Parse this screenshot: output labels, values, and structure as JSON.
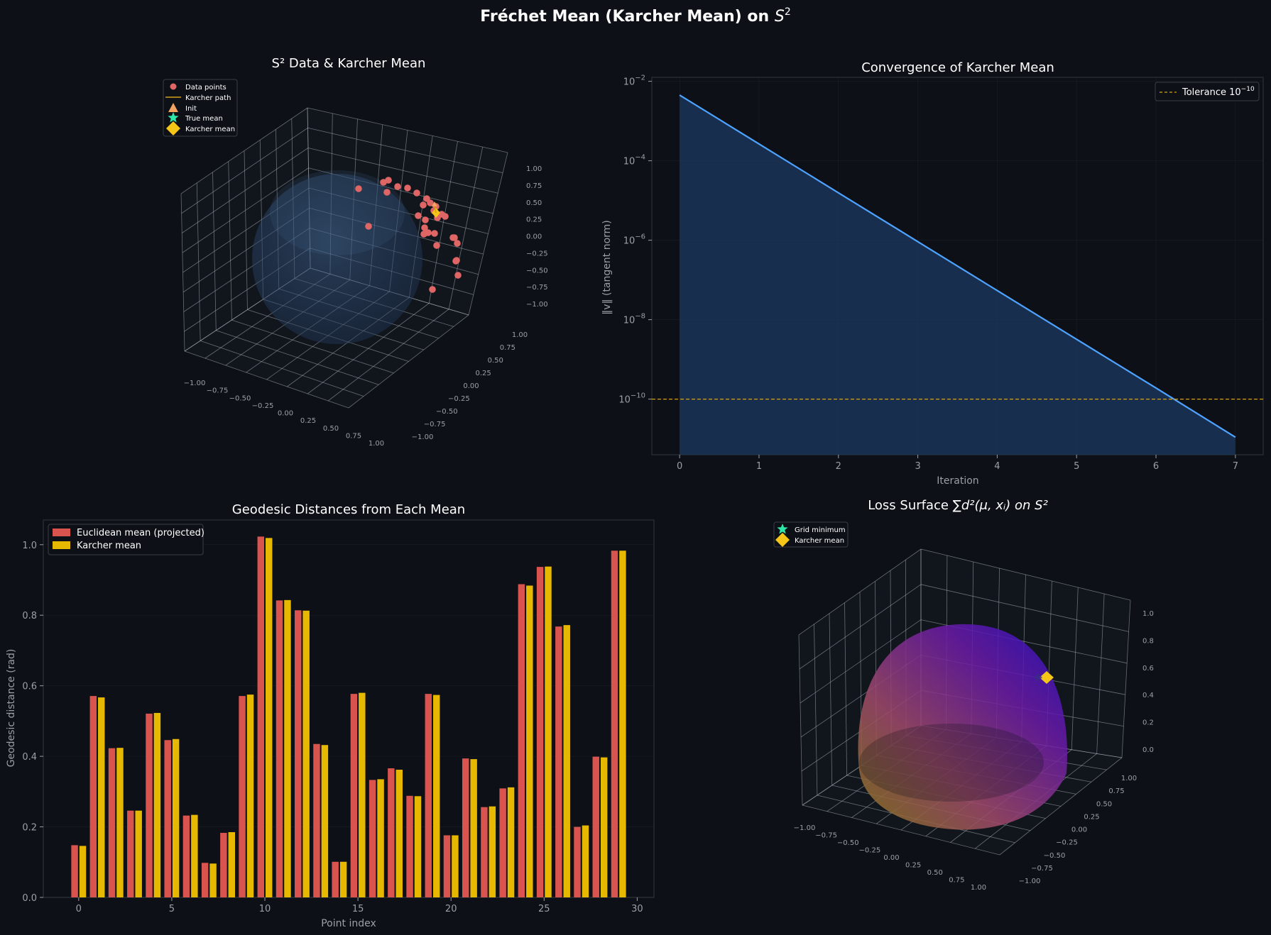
{
  "figure": {
    "suptitle": "Fréchet Mean (Karcher Mean) on",
    "suptitle_math": "S",
    "suptitle_sup": "2",
    "background": "#0d1117",
    "panel_background": "#0d1117"
  },
  "chart_data": [
    {
      "type": "scatter",
      "panel": "sphere-data",
      "title": "S² Data & Karcher Mean",
      "projection": "3d",
      "x_ticks": [
        "−1.00",
        "−0.75",
        "−0.50",
        "−0.25",
        "0.00",
        "0.25",
        "0.50",
        "0.75",
        "1.00"
      ],
      "y_ticks": [
        "−1.00",
        "−0.75",
        "−0.50",
        "−0.25",
        "0.00",
        "0.25",
        "0.50",
        "0.75",
        "1.00"
      ],
      "z_ticks": [
        "−1.00",
        "−0.75",
        "−0.50",
        "−0.25",
        "0.00",
        "0.25",
        "0.50",
        "0.75",
        "1.00"
      ],
      "legend": [
        {
          "label": "Data points",
          "marker": "circle",
          "color": "#e06666"
        },
        {
          "label": "Karcher path",
          "marker": "line",
          "color": "#d4a017"
        },
        {
          "label": "Init",
          "marker": "triangle",
          "color": "#f4a261"
        },
        {
          "label": "True mean",
          "marker": "star",
          "color": "#2ee6a8"
        },
        {
          "label": "Karcher mean",
          "marker": "diamond",
          "color": "#f5c518"
        }
      ],
      "sphere_color": "#3b5f8f",
      "data_points_projected": [
        [
          505,
          266
        ],
        [
          540,
          257
        ],
        [
          547,
          254
        ],
        [
          560,
          263
        ],
        [
          545,
          271
        ],
        [
          574,
          265
        ],
        [
          587,
          272
        ],
        [
          601,
          280
        ],
        [
          596,
          289
        ],
        [
          606,
          286
        ],
        [
          614,
          291
        ],
        [
          611,
          297
        ],
        [
          622,
          302
        ],
        [
          589,
          304
        ],
        [
          627,
          305
        ],
        [
          599,
          310
        ],
        [
          598,
          321
        ],
        [
          603,
          328
        ],
        [
          597,
          330
        ],
        [
          616,
          307
        ],
        [
          519,
          319
        ],
        [
          612,
          329
        ],
        [
          640,
          335
        ],
        [
          644,
          343
        ],
        [
          638,
          335
        ],
        [
          615,
          346
        ],
        [
          643,
          367
        ],
        [
          642,
          368
        ],
        [
          645,
          388
        ],
        [
          609,
          408
        ]
      ],
      "karcher_mean_projected": [
        614,
        300
      ]
    },
    {
      "type": "line",
      "panel": "convergence",
      "title": "Convergence of Karcher Mean",
      "xlabel": "Iteration",
      "ylabel": "‖v‖ (tangent norm)",
      "yscale": "log",
      "x": [
        0,
        1,
        2,
        3,
        4,
        5,
        6,
        7
      ],
      "y": [
        0.0045,
        0.000265,
        1.56e-05,
        9.2e-07,
        5.4e-08,
        3.2e-09,
        1.9e-10,
        1.1e-11
      ],
      "xlim": [
        -0.35,
        7.35
      ],
      "ylim_log10": [
        -11.4,
        -1.9
      ],
      "x_ticks": [
        0,
        1,
        2,
        3,
        4,
        5,
        6,
        7
      ],
      "y_ticks": [
        {
          "base": "10",
          "exp": "−2",
          "log": -2
        },
        {
          "base": "10",
          "exp": "−4",
          "log": -4
        },
        {
          "base": "10",
          "exp": "−6",
          "log": -6
        },
        {
          "base": "10",
          "exp": "−8",
          "log": -8
        },
        {
          "base": "10",
          "exp": "−10",
          "log": -10
        }
      ],
      "tolerance": {
        "value_log10": -10,
        "label": "Tolerance 10",
        "label_exp": "−10",
        "color": "#d4a017"
      },
      "line_color": "#4da3ff",
      "fill_color": "#1c3a66",
      "grid": true,
      "legend_position": "top-right"
    },
    {
      "type": "bar",
      "panel": "geodesic-distances",
      "title": "Geodesic Distances from Each Mean",
      "xlabel": "Point index",
      "ylabel": "Geodesic distance (rad)",
      "categories": [
        0,
        1,
        2,
        3,
        4,
        5,
        6,
        7,
        8,
        9,
        10,
        11,
        12,
        13,
        14,
        15,
        16,
        17,
        18,
        19,
        20,
        21,
        22,
        23,
        24,
        25,
        26,
        27,
        28,
        29
      ],
      "series": [
        {
          "name": "Euclidean mean (projected)",
          "color": "#d9534f",
          "values": [
            0.148,
            0.571,
            0.423,
            0.246,
            0.521,
            0.446,
            0.232,
            0.098,
            0.183,
            0.571,
            1.023,
            0.842,
            0.814,
            0.435,
            0.101,
            0.577,
            0.333,
            0.366,
            0.288,
            0.577,
            0.176,
            0.394,
            0.256,
            0.309,
            0.888,
            0.937,
            0.768,
            0.2,
            0.399,
            0.983
          ]
        },
        {
          "name": "Karcher mean",
          "color": "#e6b800",
          "values": [
            0.146,
            0.567,
            0.424,
            0.246,
            0.523,
            0.449,
            0.234,
            0.096,
            0.185,
            0.575,
            1.019,
            0.843,
            0.813,
            0.432,
            0.101,
            0.58,
            0.335,
            0.362,
            0.287,
            0.574,
            0.176,
            0.392,
            0.258,
            0.312,
            0.884,
            0.938,
            0.772,
            0.204,
            0.397,
            0.983
          ]
        }
      ],
      "xlim": [
        -1.9,
        30.9
      ],
      "ylim": [
        0,
        1.07
      ],
      "x_ticks": [
        0,
        5,
        10,
        15,
        20,
        25,
        30
      ],
      "y_ticks": [
        "0.0",
        "0.2",
        "0.4",
        "0.6",
        "0.8",
        "1.0"
      ],
      "legend_position": "top-left"
    },
    {
      "type": "surface",
      "panel": "loss-surface",
      "title": "Loss Surface",
      "title_math": "∑d²(μ, xᵢ) on S²",
      "projection": "3d",
      "x_ticks": [
        "−1.00",
        "−0.75",
        "−0.50",
        "−0.25",
        "0.00",
        "0.25",
        "0.50",
        "0.75",
        "1.00"
      ],
      "y_ticks": [
        "−1.00",
        "−0.75",
        "−0.50",
        "−0.25",
        "0.00",
        "0.25",
        "0.50",
        "0.75",
        "1.00"
      ],
      "z_ticks": [
        "0.0",
        "0.2",
        "0.4",
        "0.6",
        "0.8",
        "1.0"
      ],
      "legend": [
        {
          "label": "Grid minimum",
          "marker": "star",
          "color": "#2ee6a8"
        },
        {
          "label": "Karcher mean",
          "marker": "diamond",
          "color": "#f5c518"
        }
      ],
      "colormap": [
        "#8a7a1a",
        "#a04a6a",
        "#6a1aa8",
        "#2a10c8"
      ]
    }
  ]
}
